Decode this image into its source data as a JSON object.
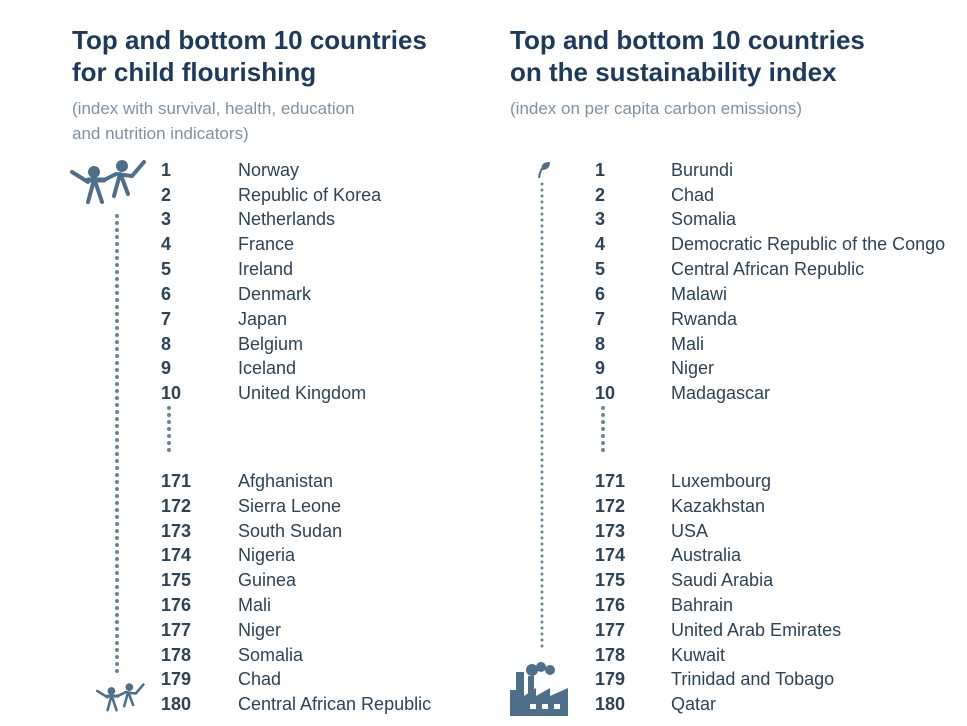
{
  "colors": {
    "title": "#1c3a5c",
    "text": "#2c4358",
    "subtitle": "#7f92a2",
    "accent": "#4e6f8a"
  },
  "panels": [
    {
      "title_line1": "Top and bottom 10 countries",
      "title_line2": "for child flourishing",
      "subtitle_line1": "(index with survival, health, education",
      "subtitle_line2": "and nutrition indicators)",
      "top_icon": "children-playing-icon",
      "bottom_icon": "children-playing-icon",
      "top": [
        {
          "rank": "1",
          "country": "Norway"
        },
        {
          "rank": "2",
          "country": "Republic of Korea"
        },
        {
          "rank": "3",
          "country": "Netherlands"
        },
        {
          "rank": "4",
          "country": "France"
        },
        {
          "rank": "5",
          "country": "Ireland"
        },
        {
          "rank": "6",
          "country": "Denmark"
        },
        {
          "rank": "7",
          "country": "Japan"
        },
        {
          "rank": "8",
          "country": "Belgium"
        },
        {
          "rank": "9",
          "country": "Iceland"
        },
        {
          "rank": "10",
          "country": "United Kingdom"
        }
      ],
      "bottom": [
        {
          "rank": "171",
          "country": "Afghanistan"
        },
        {
          "rank": "172",
          "country": "Sierra Leone"
        },
        {
          "rank": "173",
          "country": "South Sudan"
        },
        {
          "rank": "174",
          "country": "Nigeria"
        },
        {
          "rank": "175",
          "country": "Guinea"
        },
        {
          "rank": "176",
          "country": "Mali"
        },
        {
          "rank": "177",
          "country": "Niger"
        },
        {
          "rank": "178",
          "country": "Somalia"
        },
        {
          "rank": "179",
          "country": "Chad"
        },
        {
          "rank": "180",
          "country": "Central African Republic"
        }
      ]
    },
    {
      "title_line1": "Top and bottom 10 countries",
      "title_line2": "on the sustainability index",
      "subtitle_line1": "(index on per capita carbon emissions)",
      "subtitle_line2": "",
      "top_icon": "leaf-icon",
      "bottom_icon": "factory-icon",
      "top": [
        {
          "rank": "1",
          "country": "Burundi"
        },
        {
          "rank": "2",
          "country": "Chad"
        },
        {
          "rank": "3",
          "country": "Somalia"
        },
        {
          "rank": "4",
          "country": "Democratic Republic of the Congo"
        },
        {
          "rank": "5",
          "country": "Central African Republic"
        },
        {
          "rank": "6",
          "country": "Malawi"
        },
        {
          "rank": "7",
          "country": "Rwanda"
        },
        {
          "rank": "8",
          "country": "Mali"
        },
        {
          "rank": "9",
          "country": "Niger"
        },
        {
          "rank": "10",
          "country": "Madagascar"
        }
      ],
      "bottom": [
        {
          "rank": "171",
          "country": "Luxembourg"
        },
        {
          "rank": "172",
          "country": "Kazakhstan"
        },
        {
          "rank": "173",
          "country": "USA"
        },
        {
          "rank": "174",
          "country": "Australia"
        },
        {
          "rank": "175",
          "country": "Saudi Arabia"
        },
        {
          "rank": "176",
          "country": "Bahrain"
        },
        {
          "rank": "177",
          "country": "United Arab Emirates"
        },
        {
          "rank": "178",
          "country": "Kuwait"
        },
        {
          "rank": "179",
          "country": "Trinidad and Tobago"
        },
        {
          "rank": "180",
          "country": "Qatar"
        }
      ]
    }
  ]
}
